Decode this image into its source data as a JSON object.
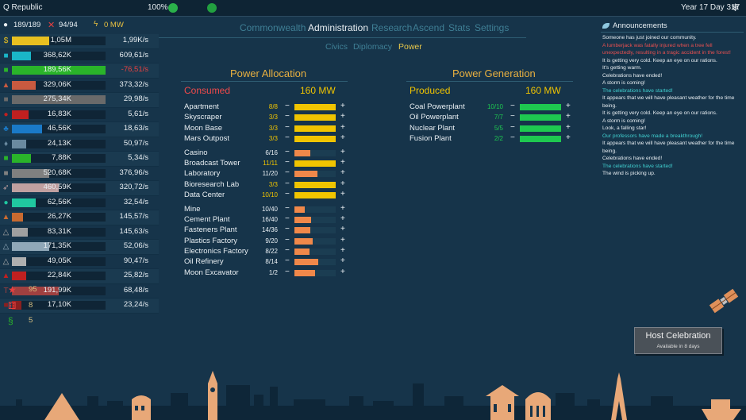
{
  "topbar": {
    "title": "Q Republic",
    "health": "100%",
    "date": "Year 17 Day 317"
  },
  "status": {
    "population": "189/189",
    "soldiers": "94/94",
    "power": "0 MW"
  },
  "resources": [
    {
      "icon": "coins-icon",
      "glyph": "$",
      "color": "#e8c020",
      "fill": 0.4,
      "value": "1,05M",
      "rate": "1,99K/s",
      "rate_color": "#e8eef2"
    },
    {
      "icon": "book-icon",
      "glyph": "■",
      "color": "#1ab6c8",
      "fill": 0.2,
      "value": "368,62K",
      "rate": "609,61/s",
      "rate_color": "#e8eef2"
    },
    {
      "icon": "food-icon",
      "glyph": "■",
      "color": "#2ab42a",
      "fill": 1.0,
      "value": "189,56K",
      "rate": "-76,51/s",
      "rate_color": "#e84040"
    },
    {
      "icon": "wood-icon",
      "glyph": "▲",
      "color": "#c85a40",
      "fill": 0.25,
      "value": "329,06K",
      "rate": "373,32/s",
      "rate_color": "#e8eef2"
    },
    {
      "icon": "coal-icon",
      "glyph": "■",
      "color": "#6a6a6a",
      "fill": 1.0,
      "value": "275,34K",
      "rate": "29,98/s",
      "rate_color": "#e8eef2"
    },
    {
      "icon": "oil-icon",
      "glyph": "●",
      "color": "#c02020",
      "fill": 0.18,
      "value": "16,83K",
      "rate": "5,61/s",
      "rate_color": "#e8eef2"
    },
    {
      "icon": "water-icon",
      "glyph": "♣",
      "color": "#1a7ac8",
      "fill": 0.32,
      "value": "46,56K",
      "rate": "18,63/s",
      "rate_color": "#e8eef2"
    },
    {
      "icon": "metal-icon",
      "glyph": "♦",
      "color": "#6a8aa0",
      "fill": 0.15,
      "value": "24,13K",
      "rate": "50,97/s",
      "rate_color": "#e8eef2"
    },
    {
      "icon": "medicine-icon",
      "glyph": "■",
      "color": "#2ab42a",
      "fill": 0.2,
      "value": "7,88K",
      "rate": "5,34/s",
      "rate_color": "#e8eef2"
    },
    {
      "icon": "steel-icon",
      "glyph": "■",
      "color": "#808080",
      "fill": 0.4,
      "value": "520,68K",
      "rate": "376,96/s",
      "rate_color": "#e8eef2"
    },
    {
      "icon": "rocket-icon",
      "glyph": "➶",
      "color": "#c0a0a0",
      "fill": 0.5,
      "value": "460,59K",
      "rate": "320,72/s",
      "rate_color": "#e8eef2"
    },
    {
      "icon": "gem-icon",
      "glyph": "●",
      "color": "#20c8a0",
      "fill": 0.25,
      "value": "62,56K",
      "rate": "32,54/s",
      "rate_color": "#e8eef2"
    },
    {
      "icon": "brick-icon",
      "glyph": "▲",
      "color": "#c86a30",
      "fill": 0.12,
      "value": "26,27K",
      "rate": "145,57/s",
      "rate_color": "#e8eef2"
    },
    {
      "icon": "glass-icon",
      "glyph": "△",
      "color": "#a0a0a0",
      "fill": 0.17,
      "value": "83,31K",
      "rate": "145,63/s",
      "rate_color": "#e8eef2"
    },
    {
      "icon": "plastic-icon",
      "glyph": "△",
      "color": "#90a8b8",
      "fill": 0.4,
      "value": "171,35K",
      "rate": "52,06/s",
      "rate_color": "#e8eef2"
    },
    {
      "icon": "chip-icon",
      "glyph": "△",
      "color": "#b0b0b0",
      "fill": 0.15,
      "value": "49,05K",
      "rate": "90,47/s",
      "rate_color": "#e8eef2"
    },
    {
      "icon": "fabric-icon",
      "glyph": "▲",
      "color": "#c02020",
      "fill": 0.15,
      "value": "22,84K",
      "rate": "25,82/s",
      "rate_color": "#e8eef2"
    },
    {
      "icon": "tool-icon",
      "glyph": "T",
      "color": "#a04040",
      "fill": 0.5,
      "value": "191,99K",
      "rate": "68,48/s",
      "rate_color": "#e8eef2"
    },
    {
      "icon": "fuel-icon",
      "glyph": "■",
      "color": "#8a2020",
      "fill": 0.1,
      "value": "17,10K",
      "rate": "23,24/s",
      "rate_color": "#e8eef2"
    }
  ],
  "misc": [
    {
      "icon": "star-icon",
      "glyph": "★",
      "color": "#e84040",
      "value": "95"
    },
    {
      "icon": "dice-icon",
      "glyph": "⚅",
      "color": "#e84040",
      "value": "8"
    },
    {
      "icon": "dna-icon",
      "glyph": "§",
      "color": "#2ab42a",
      "value": "5"
    }
  ],
  "tabs": [
    "Commonwealth",
    "Administration",
    "Research",
    "Ascend",
    "Stats",
    "Settings"
  ],
  "subtabs": [
    "Civics",
    "Diplomacy",
    "Power"
  ],
  "allocation": {
    "title": "Power Allocation",
    "consumed_label": "Consumed",
    "consumed_value": "160 MW",
    "items": [
      {
        "name": "Apartment",
        "count": "8/8",
        "fill": 1.0,
        "color": "#f0c400",
        "full": true
      },
      {
        "name": "Skyscraper",
        "count": "3/3",
        "fill": 1.0,
        "color": "#f0c400",
        "full": true
      },
      {
        "name": "Moon Base",
        "count": "3/3",
        "fill": 1.0,
        "color": "#f0c400",
        "full": true
      },
      {
        "name": "Mars Outpost",
        "count": "3/3",
        "fill": 1.0,
        "color": "#f0c400",
        "full": true
      },
      {
        "name": "Casino",
        "count": "6/16",
        "fill": 0.38,
        "color": "#f0884a",
        "full": false,
        "gap": true
      },
      {
        "name": "Broadcast Tower",
        "count": "11/11",
        "fill": 1.0,
        "color": "#f0c400",
        "full": true
      },
      {
        "name": "Laboratory",
        "count": "11/20",
        "fill": 0.55,
        "color": "#f0884a",
        "full": false
      },
      {
        "name": "Bioresearch Lab",
        "count": "3/3",
        "fill": 1.0,
        "color": "#f0c400",
        "full": true
      },
      {
        "name": "Data Center",
        "count": "10/10",
        "fill": 1.0,
        "color": "#f0c400",
        "full": true
      },
      {
        "name": "Mine",
        "count": "10/40",
        "fill": 0.25,
        "color": "#f0884a",
        "full": false,
        "gap": true
      },
      {
        "name": "Cement Plant",
        "count": "16/40",
        "fill": 0.4,
        "color": "#f0884a",
        "full": false
      },
      {
        "name": "Fasteners Plant",
        "count": "14/36",
        "fill": 0.39,
        "color": "#f0884a",
        "full": false
      },
      {
        "name": "Plastics Factory",
        "count": "9/20",
        "fill": 0.45,
        "color": "#f0884a",
        "full": false
      },
      {
        "name": "Electronics Factory",
        "count": "8/22",
        "fill": 0.36,
        "color": "#f0884a",
        "full": false
      },
      {
        "name": "Oil Refinery",
        "count": "8/14",
        "fill": 0.57,
        "color": "#f0884a",
        "full": false
      },
      {
        "name": "Moon Excavator",
        "count": "1/2",
        "fill": 0.5,
        "color": "#f0884a",
        "full": false
      }
    ]
  },
  "generation": {
    "title": "Power Generation",
    "produced_label": "Produced",
    "produced_value": "160 MW",
    "items": [
      {
        "name": "Coal Powerplant",
        "count": "10/10",
        "fill": 1.0,
        "color": "#1ec850"
      },
      {
        "name": "Oil Powerplant",
        "count": "7/7",
        "fill": 1.0,
        "color": "#1ec850"
      },
      {
        "name": "Nuclear Plant",
        "count": "5/5",
        "fill": 1.0,
        "color": "#1ec850"
      },
      {
        "name": "Fusion Plant",
        "count": "2/2",
        "fill": 1.0,
        "color": "#1ec850"
      }
    ]
  },
  "announcements": {
    "title": "Announcements",
    "messages": [
      {
        "text": "Someone has just joined our community.",
        "color": "#e8eef2"
      },
      {
        "text": "A lumberjack was fatally injured when a tree fell unexpectedly, resulting in a tragic accident in the forest!",
        "color": "#e85050"
      },
      {
        "text": "It is getting very cold. Keep an eye on our rations.",
        "color": "#e8eef2"
      },
      {
        "text": "It's getting warm.",
        "color": "#e8eef2"
      },
      {
        "text": "Celebrations have ended!",
        "color": "#e8eef2"
      },
      {
        "text": "A storm is coming!",
        "color": "#e8eef2"
      },
      {
        "text": "The celebrations have started!",
        "color": "#40d0d0"
      },
      {
        "text": "It appears that we will have pleasant weather for the time being.",
        "color": "#e8eef2"
      },
      {
        "text": "It is getting very cold. Keep an eye on our rations.",
        "color": "#e8eef2"
      },
      {
        "text": "A storm is coming!",
        "color": "#e8eef2"
      },
      {
        "text": "Look, a falling star!",
        "color": "#e8eef2"
      },
      {
        "text": "Our professors have made a breakthrough!",
        "color": "#40d0d0"
      },
      {
        "text": "It appears that we will have pleasant weather for the time being.",
        "color": "#e8eef2"
      },
      {
        "text": "Celebrations have ended!",
        "color": "#e8eef2"
      },
      {
        "text": "The celebrations have started!",
        "color": "#40d0d0"
      },
      {
        "text": "The wind is picking up.",
        "color": "#e8eef2"
      }
    ]
  },
  "host": {
    "label": "Host Celebration",
    "sub": "Available in 8 days"
  }
}
